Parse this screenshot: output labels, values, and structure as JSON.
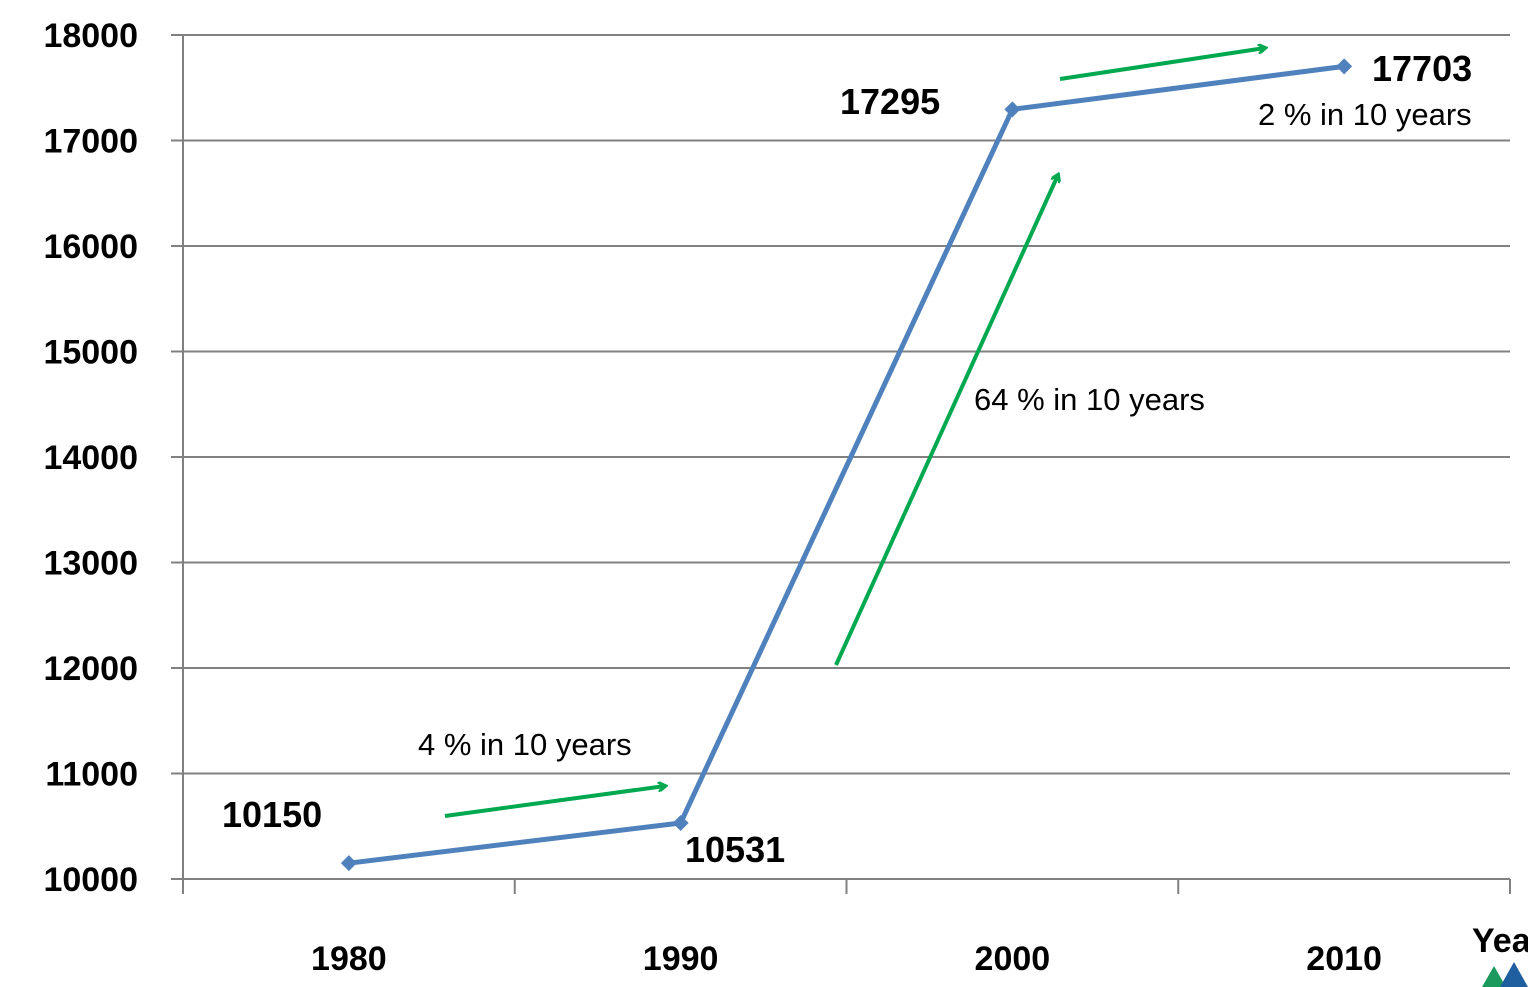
{
  "chart_data": {
    "type": "line",
    "categories": [
      "1980",
      "1990",
      "2000",
      "2010"
    ],
    "series": [
      {
        "values": [
          10150,
          10531,
          17295,
          17703
        ]
      }
    ],
    "data_labels": [
      "10150",
      "10531",
      "17295",
      "17703"
    ],
    "y_ticks": [
      "10000",
      "11000",
      "12000",
      "13000",
      "14000",
      "15000",
      "16000",
      "17000",
      "18000"
    ],
    "ylim": [
      10000,
      18000
    ],
    "xlabel": "Yea",
    "annotations": [
      "4 % in 10 years",
      "64 % in 10 years",
      "2 % in 10 years"
    ],
    "grid": true,
    "colors": {
      "series": "#4f81bd",
      "arrows": "#00a850",
      "grid": "#808080"
    }
  }
}
